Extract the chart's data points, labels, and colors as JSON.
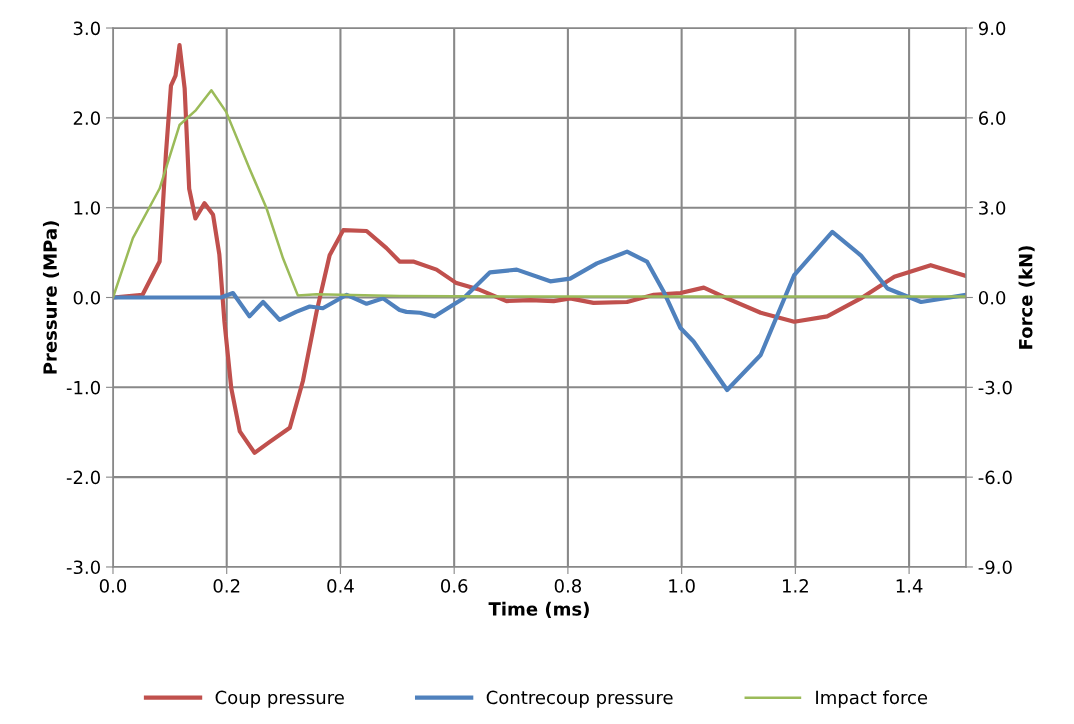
{
  "chart_data": {
    "type": "line",
    "xlabel": "Time (ms)",
    "ylabel": "Pressure (MPa)",
    "y2label": "Force (kN)",
    "xlim": [
      0,
      1.5
    ],
    "xticks": [
      {
        "value": 0,
        "label": "0.0"
      },
      {
        "value": 0.2,
        "label": "0.2"
      },
      {
        "value": 0.4,
        "label": "0.4"
      },
      {
        "value": 0.6,
        "label": "0.6"
      },
      {
        "value": 0.8,
        "label": "0.8"
      },
      {
        "value": 1.0,
        "label": "1.0"
      },
      {
        "value": 1.2,
        "label": "1.2"
      },
      {
        "value": 1.4,
        "label": "1.4"
      }
    ],
    "ylim": [
      -3,
      3
    ],
    "yticks": [
      {
        "value": -3,
        "label": "-3.0"
      },
      {
        "value": -2,
        "label": "-2.0"
      },
      {
        "value": -1,
        "label": "-1.0"
      },
      {
        "value": 0,
        "label": "0.0"
      },
      {
        "value": 1,
        "label": "1.0"
      },
      {
        "value": 2,
        "label": "2.0"
      },
      {
        "value": 3,
        "label": "3.0"
      }
    ],
    "y2lim": [
      -9,
      9
    ],
    "y2ticks": [
      {
        "value": -9,
        "label": "-9.0"
      },
      {
        "value": -6,
        "label": "-6.0"
      },
      {
        "value": -3,
        "label": "-3.0"
      },
      {
        "value": 0,
        "label": "0.0"
      },
      {
        "value": 3,
        "label": "3.0"
      },
      {
        "value": 6,
        "label": "6.0"
      },
      {
        "value": 9,
        "label": "9.0"
      }
    ],
    "grid": true,
    "legend": "bottom",
    "marker": "none",
    "line_style": "solid",
    "series": [
      {
        "name": "Coup pressure",
        "color": "#c0504d",
        "x": [
          0,
          0.052,
          0.082,
          0.093,
          0.102,
          0.11,
          0.117,
          0.126,
          0.134,
          0.145,
          0.161,
          0.176,
          0.187,
          0.196,
          0.208,
          0.223,
          0.249,
          0.275,
          0.311,
          0.334,
          0.358,
          0.381,
          0.405,
          0.446,
          0.481,
          0.504,
          0.528,
          0.569,
          0.604,
          0.645,
          0.692,
          0.734,
          0.775,
          0.804,
          0.845,
          0.904,
          0.951,
          0.998,
          1.039,
          1.08,
          1.139,
          1.198,
          1.256,
          1.315,
          1.374,
          1.438,
          1.5
        ],
        "values": [
          0,
          0.03,
          0.4,
          1.59,
          2.36,
          2.47,
          2.81,
          2.33,
          1.21,
          0.88,
          1.05,
          0.92,
          0.48,
          -0.27,
          -1.01,
          -1.49,
          -1.73,
          -1.61,
          -1.45,
          -0.93,
          -0.16,
          0.47,
          0.75,
          0.74,
          0.55,
          0.4,
          0.4,
          0.31,
          0.16,
          0.085,
          -0.04,
          -0.03,
          -0.04,
          -0.01,
          -0.06,
          -0.05,
          0.03,
          0.05,
          0.11,
          -0.01,
          -0.17,
          -0.27,
          -0.21,
          -0.01,
          0.23,
          0.36,
          0.24
        ]
      },
      {
        "name": "Contrecoup pressure",
        "color": "#4f81bd",
        "x": [
          0,
          0.1,
          0.19,
          0.211,
          0.24,
          0.264,
          0.293,
          0.322,
          0.346,
          0.369,
          0.411,
          0.446,
          0.475,
          0.504,
          0.516,
          0.54,
          0.566,
          0.616,
          0.663,
          0.71,
          0.769,
          0.804,
          0.851,
          0.904,
          0.939,
          0.968,
          0.998,
          1.021,
          1.08,
          1.139,
          1.198,
          1.265,
          1.315,
          1.362,
          1.421,
          1.5
        ],
        "values": [
          0,
          0,
          0,
          0.05,
          -0.21,
          -0.05,
          -0.25,
          -0.16,
          -0.1,
          -0.12,
          0.03,
          -0.07,
          -0.01,
          -0.14,
          -0.16,
          -0.17,
          -0.21,
          -0.01,
          0.28,
          0.31,
          0.18,
          0.21,
          0.38,
          0.51,
          0.4,
          0.07,
          -0.34,
          -0.49,
          -1.03,
          -0.64,
          0.25,
          0.73,
          0.47,
          0.1,
          -0.05,
          0.03
        ]
      },
      {
        "name": "Impact force",
        "color": "#9bbb59",
        "axis": "y2",
        "x": [
          0,
          0.035,
          0.082,
          0.117,
          0.146,
          0.173,
          0.199,
          0.24,
          0.27,
          0.299,
          0.325,
          0.358,
          0.504,
          0.8,
          1.0,
          1.2,
          1.5
        ],
        "values": [
          0,
          1.98,
          3.64,
          5.76,
          6.26,
          6.92,
          6.2,
          4.31,
          2.98,
          1.31,
          0.07,
          0.11,
          0.05,
          0.03,
          0.03,
          0.03,
          0.03
        ]
      }
    ]
  }
}
